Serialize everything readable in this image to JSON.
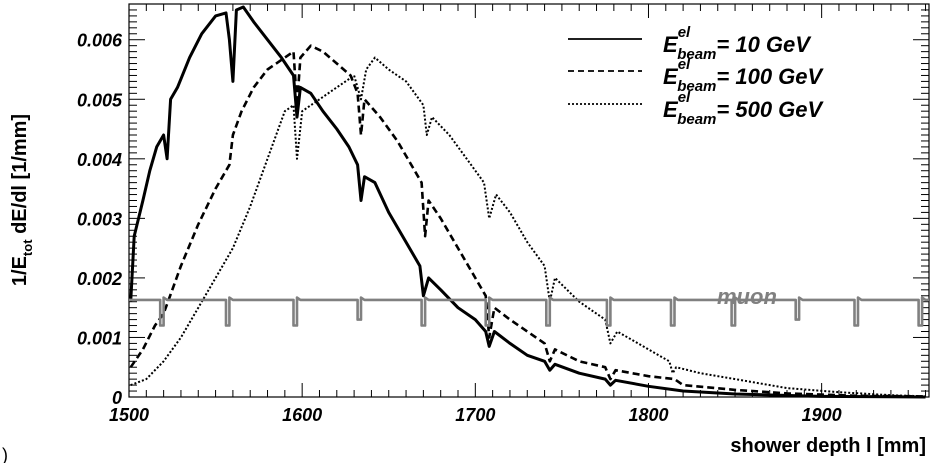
{
  "chart_data": {
    "type": "line",
    "title": "",
    "xlabel": "shower depth l [mm]",
    "ylabel_parts": {
      "main": "1/E",
      "sub": "tot",
      "rest": " dE/dl [1/mm]"
    },
    "xlim": [
      1500,
      1962
    ],
    "ylim": [
      0,
      0.0066
    ],
    "x_tick_labels": [
      "1500",
      "1600",
      "1700",
      "1800",
      "1900"
    ],
    "y_tick_labels": [
      "0",
      "0.001",
      "0.002",
      "0.003",
      "0.004",
      "0.005",
      "0.006"
    ],
    "grid": false,
    "legend_placement": "top-right",
    "legend": [
      {
        "E": "E",
        "sup": "el",
        "sub": "beam",
        "rest": "= 10 GeV"
      },
      {
        "E": "E",
        "sup": "el",
        "sub": "beam",
        "rest": "= 100 GeV"
      },
      {
        "E": "E",
        "sup": "el",
        "sub": "beam",
        "rest": "= 500 GeV"
      }
    ],
    "annotation": "muon",
    "stray_text": ")",
    "series": [
      {
        "name": "E^el_beam = 10 GeV",
        "style": "solid",
        "color": "#000000",
        "points": [
          [
            1501,
            0.0016
          ],
          [
            1503,
            0.0027
          ],
          [
            1508,
            0.0033
          ],
          [
            1512,
            0.0038
          ],
          [
            1516,
            0.0042
          ],
          [
            1520,
            0.0044
          ],
          [
            1522,
            0.004
          ],
          [
            1524,
            0.005
          ],
          [
            1528,
            0.0052
          ],
          [
            1535,
            0.0057
          ],
          [
            1542,
            0.0061
          ],
          [
            1550,
            0.0064
          ],
          [
            1556,
            0.00645
          ],
          [
            1558,
            0.006
          ],
          [
            1560,
            0.0053
          ],
          [
            1562,
            0.0065
          ],
          [
            1566,
            0.00655
          ],
          [
            1572,
            0.0063
          ],
          [
            1580,
            0.006
          ],
          [
            1588,
            0.0057
          ],
          [
            1595,
            0.0054
          ],
          [
            1597,
            0.0047
          ],
          [
            1599,
            0.0052
          ],
          [
            1605,
            0.0051
          ],
          [
            1612,
            0.0048
          ],
          [
            1620,
            0.0045
          ],
          [
            1627,
            0.0042
          ],
          [
            1632,
            0.0039
          ],
          [
            1634,
            0.0033
          ],
          [
            1636,
            0.0037
          ],
          [
            1642,
            0.0036
          ],
          [
            1650,
            0.0031
          ],
          [
            1660,
            0.0026
          ],
          [
            1668,
            0.0022
          ],
          [
            1670,
            0.0017
          ],
          [
            1673,
            0.002
          ],
          [
            1680,
            0.0018
          ],
          [
            1690,
            0.0015
          ],
          [
            1700,
            0.0013
          ],
          [
            1706,
            0.0011
          ],
          [
            1708,
            0.00085
          ],
          [
            1711,
            0.0011
          ],
          [
            1720,
            0.0009
          ],
          [
            1730,
            0.0007
          ],
          [
            1740,
            0.0006
          ],
          [
            1743,
            0.00045
          ],
          [
            1746,
            0.00055
          ],
          [
            1760,
            0.0004
          ],
          [
            1775,
            0.0003
          ],
          [
            1778,
            0.0002
          ],
          [
            1781,
            0.00028
          ],
          [
            1800,
            0.00018
          ],
          [
            1820,
            0.0001
          ],
          [
            1850,
            5e-05
          ],
          [
            1900,
            1e-05
          ],
          [
            1960,
            0.0
          ]
        ]
      },
      {
        "name": "E^el_beam = 100 GeV",
        "style": "dashed",
        "color": "#000000",
        "points": [
          [
            1501,
            0.0005
          ],
          [
            1508,
            0.0008
          ],
          [
            1515,
            0.0012
          ],
          [
            1520,
            0.0014
          ],
          [
            1525,
            0.0018
          ],
          [
            1530,
            0.0022
          ],
          [
            1540,
            0.0029
          ],
          [
            1550,
            0.0035
          ],
          [
            1556,
            0.0038
          ],
          [
            1558,
            0.0039
          ],
          [
            1560,
            0.0044
          ],
          [
            1565,
            0.0048
          ],
          [
            1572,
            0.0052
          ],
          [
            1580,
            0.0055
          ],
          [
            1590,
            0.0057
          ],
          [
            1595,
            0.0058
          ],
          [
            1597,
            0.0049
          ],
          [
            1599,
            0.0057
          ],
          [
            1605,
            0.0059
          ],
          [
            1612,
            0.0058
          ],
          [
            1620,
            0.0056
          ],
          [
            1628,
            0.0054
          ],
          [
            1632,
            0.0051
          ],
          [
            1634,
            0.0044
          ],
          [
            1636,
            0.005
          ],
          [
            1645,
            0.0047
          ],
          [
            1655,
            0.0043
          ],
          [
            1665,
            0.0038
          ],
          [
            1669,
            0.0036
          ],
          [
            1671,
            0.0027
          ],
          [
            1673,
            0.0033
          ],
          [
            1680,
            0.003
          ],
          [
            1690,
            0.0025
          ],
          [
            1700,
            0.002
          ],
          [
            1706,
            0.0017
          ],
          [
            1708,
            0.001
          ],
          [
            1711,
            0.0015
          ],
          [
            1720,
            0.0013
          ],
          [
            1730,
            0.0011
          ],
          [
            1740,
            0.0009
          ],
          [
            1743,
            0.0006
          ],
          [
            1746,
            0.0008
          ],
          [
            1760,
            0.0006
          ],
          [
            1775,
            0.0005
          ],
          [
            1778,
            0.0003
          ],
          [
            1781,
            0.00045
          ],
          [
            1800,
            0.00035
          ],
          [
            1815,
            0.0003
          ],
          [
            1820,
            0.0002
          ],
          [
            1850,
            0.00012
          ],
          [
            1880,
            6e-05
          ],
          [
            1920,
            2e-05
          ],
          [
            1960,
            1e-05
          ]
        ]
      },
      {
        "name": "E^el_beam = 500 GeV",
        "style": "dotted",
        "color": "#000000",
        "points": [
          [
            1501,
            0.0002
          ],
          [
            1510,
            0.0003
          ],
          [
            1520,
            0.0006
          ],
          [
            1530,
            0.001
          ],
          [
            1540,
            0.0015
          ],
          [
            1550,
            0.002
          ],
          [
            1560,
            0.0025
          ],
          [
            1570,
            0.0032
          ],
          [
            1580,
            0.004
          ],
          [
            1590,
            0.0048
          ],
          [
            1595,
            0.0049
          ],
          [
            1597,
            0.004
          ],
          [
            1600,
            0.0048
          ],
          [
            1610,
            0.005
          ],
          [
            1620,
            0.0052
          ],
          [
            1630,
            0.0054
          ],
          [
            1634,
            0.005
          ],
          [
            1637,
            0.0055
          ],
          [
            1642,
            0.0057
          ],
          [
            1650,
            0.0055
          ],
          [
            1660,
            0.0053
          ],
          [
            1670,
            0.0049
          ],
          [
            1672,
            0.0044
          ],
          [
            1675,
            0.0047
          ],
          [
            1685,
            0.0044
          ],
          [
            1695,
            0.004
          ],
          [
            1705,
            0.0036
          ],
          [
            1708,
            0.003
          ],
          [
            1712,
            0.0034
          ],
          [
            1720,
            0.0031
          ],
          [
            1730,
            0.0026
          ],
          [
            1740,
            0.0022
          ],
          [
            1743,
            0.0016
          ],
          [
            1746,
            0.002
          ],
          [
            1760,
            0.0016
          ],
          [
            1775,
            0.0013
          ],
          [
            1778,
            0.0009
          ],
          [
            1782,
            0.0011
          ],
          [
            1800,
            0.0008
          ],
          [
            1812,
            0.0006
          ],
          [
            1814,
            0.0004
          ],
          [
            1816,
            0.0005
          ],
          [
            1830,
            0.0004
          ],
          [
            1850,
            0.0003
          ],
          [
            1880,
            0.00015
          ],
          [
            1910,
            8e-05
          ],
          [
            1940,
            3e-05
          ],
          [
            1960,
            1e-05
          ]
        ]
      },
      {
        "name": "muon",
        "style": "solid",
        "color": "#808080",
        "base": 0.00163,
        "dips": [
          [
            1520,
            0.0012
          ],
          [
            1558,
            0.0012
          ],
          [
            1597,
            0.0012
          ],
          [
            1634,
            0.0013
          ],
          [
            1671,
            0.0012
          ],
          [
            1708,
            0.0012
          ],
          [
            1743,
            0.0012
          ],
          [
            1778,
            0.0012
          ],
          [
            1815,
            0.0012
          ],
          [
            1850,
            0.0012
          ],
          [
            1887,
            0.0013
          ],
          [
            1921,
            0.0012
          ],
          [
            1958,
            0.0012
          ]
        ]
      }
    ]
  }
}
